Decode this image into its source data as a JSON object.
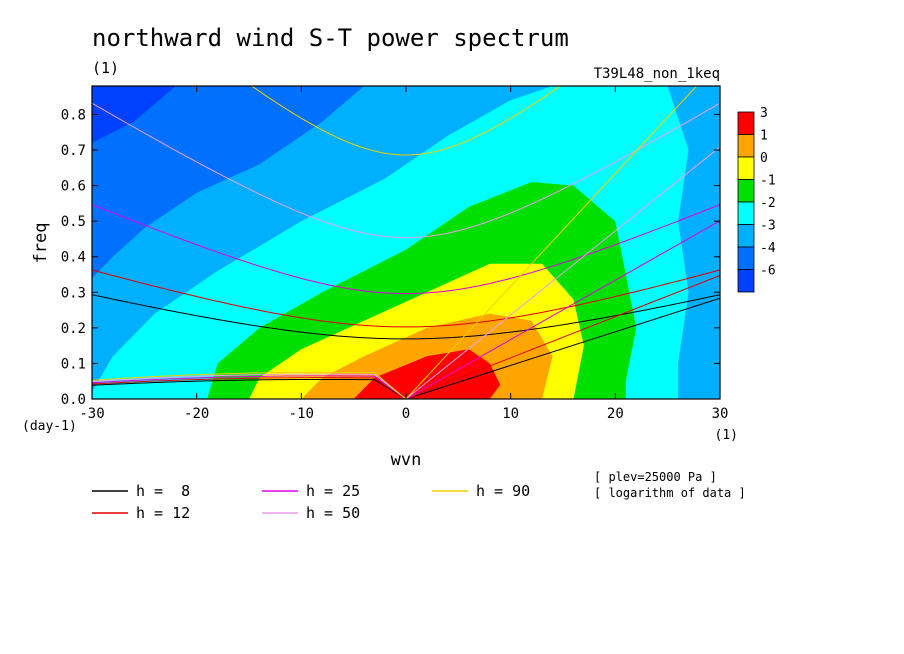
{
  "chart_data": {
    "type": "heatmap",
    "title": "northward wind S-T power spectrum",
    "subtitle_left": "(1)",
    "subtitle_right": "T39L48_non_1keq",
    "xlabel": "wvn",
    "ylabel": "freq",
    "x_unit": "(1)",
    "y_unit": "(day-1)",
    "xlim": [
      -30,
      30
    ],
    "ylim": [
      0,
      0.88
    ],
    "x_ticks": [
      -30,
      -20,
      -10,
      0,
      10,
      20,
      30
    ],
    "x_tick_labels": [
      "-30",
      "-20",
      "-10",
      "0",
      "10",
      "20",
      "30"
    ],
    "y_ticks": [
      0,
      0.1,
      0.2,
      0.3,
      0.4,
      0.5,
      0.6,
      0.7,
      0.8
    ],
    "y_tick_labels": [
      "0.0",
      "0.1",
      "0.2",
      "0.3",
      "0.4",
      "0.5",
      "0.6",
      "0.7",
      "0.8"
    ],
    "colorbar": {
      "labels": [
        "3",
        "1",
        "0",
        "-1",
        "-2",
        "-3",
        "-4",
        "-6"
      ],
      "colors": [
        "#ff0000",
        "#ffa500",
        "#ffff00",
        "#00e000",
        "#00ffff",
        "#00b0ff",
        "#0070ff",
        "#0040ff"
      ]
    },
    "fill_levels": [
      {
        "level": "-6",
        "color": "#0040ff"
      },
      {
        "level": "-4",
        "color": "#0070ff"
      },
      {
        "level": "-3",
        "color": "#00b0ff"
      },
      {
        "level": "-2",
        "color": "#00ffff"
      },
      {
        "level": "-1",
        "color": "#00e000"
      },
      {
        "level": "0",
        "color": "#ffff00"
      },
      {
        "level": "1",
        "color": "#ffa500"
      },
      {
        "level": "3",
        "color": "#ff0000"
      }
    ],
    "dispersion_curves": [
      {
        "label": "h =  8",
        "h": 8,
        "color": "#000000"
      },
      {
        "label": "h = 12",
        "h": 12,
        "color": "#e00000"
      },
      {
        "label": "h = 25",
        "h": 25,
        "color": "#e000e0"
      },
      {
        "label": "h = 50",
        "h": 50,
        "color": "#e8a0e8"
      },
      {
        "label": "h = 90",
        "h": 90,
        "color": "#f0d000"
      }
    ],
    "notes": [
      "[ plev=25000 Pa ]",
      "[ logarithm of data ]"
    ]
  }
}
